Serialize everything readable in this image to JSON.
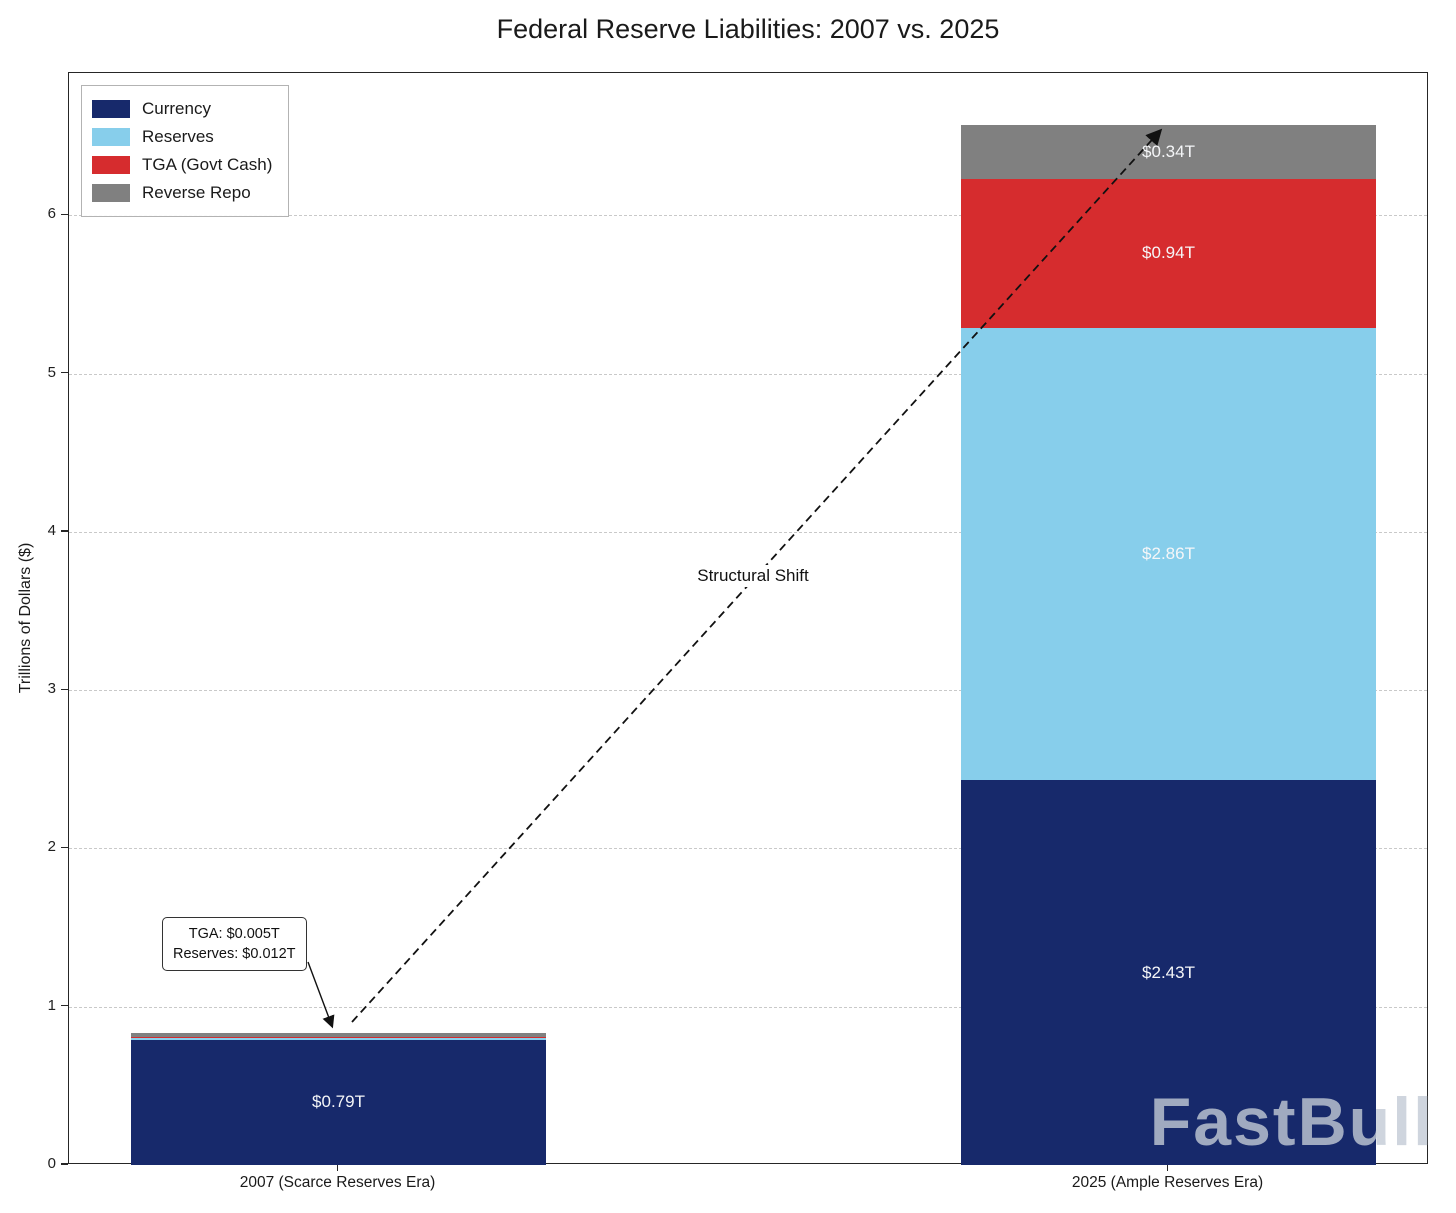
{
  "watermark": "FastBull",
  "chart_data": {
    "type": "bar",
    "stacked": true,
    "title": "Federal Reserve Liabilities: 2007 vs. 2025",
    "xlabel": "",
    "ylabel": "Trillions of Dollars ($)",
    "ylim": [
      0,
      6.9
    ],
    "yticks": [
      0,
      1,
      2,
      3,
      4,
      5,
      6
    ],
    "grid": true,
    "legend_position": "upper left",
    "categories": [
      "2007 (Scarce Reserves Era)",
      "2025 (Ample Reserves Era)"
    ],
    "series": [
      {
        "name": "Currency",
        "color": "#17296b",
        "values": [
          0.79,
          2.43
        ],
        "bar_labels": [
          "$0.79T",
          "$2.43T"
        ]
      },
      {
        "name": "Reserves",
        "color": "#87ceeb",
        "values": [
          0.012,
          2.86
        ],
        "bar_labels": [
          "",
          "$2.86T"
        ]
      },
      {
        "name": "TGA (Govt Cash)",
        "color": "#d62c2e",
        "values": [
          0.005,
          0.94
        ],
        "bar_labels": [
          "",
          "$0.94T"
        ]
      },
      {
        "name": "Reverse Repo",
        "color": "#808080",
        "values": [
          0.03,
          0.34
        ],
        "bar_labels": [
          "",
          "$0.34T"
        ]
      }
    ],
    "annotations": [
      {
        "type": "callout",
        "lines": [
          "TGA: $0.005T",
          "Reserves: $0.012T"
        ]
      },
      {
        "type": "arrow-label",
        "text": "Structural Shift"
      }
    ]
  }
}
